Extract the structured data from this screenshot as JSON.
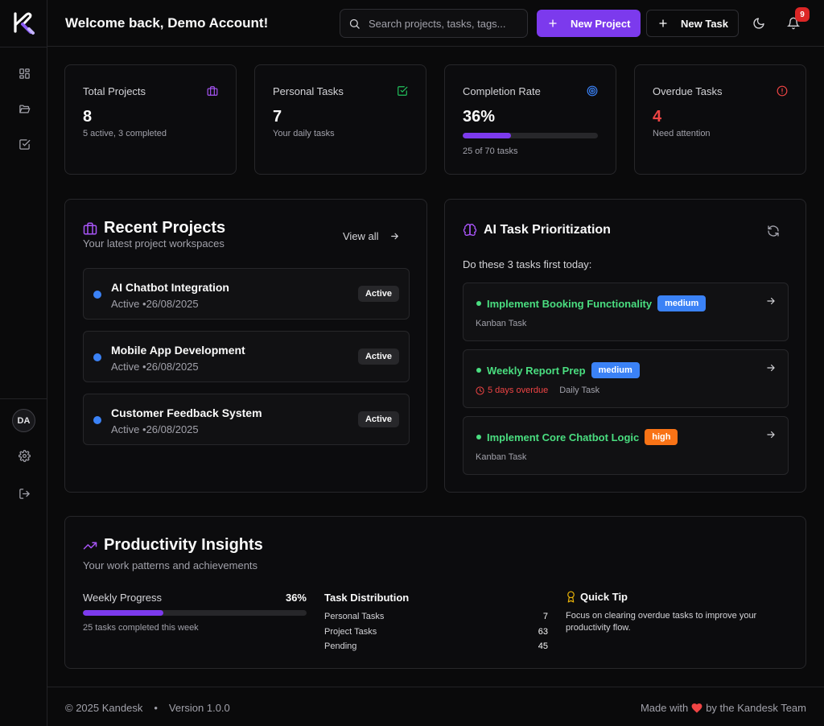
{
  "header": {
    "welcome": "Welcome back, Demo Account!",
    "search_placeholder": "Search projects, tasks, tags...",
    "new_project_label": "New Project",
    "new_task_label": "New Task",
    "notifications_count": "9"
  },
  "sidebar": {
    "avatar_initials": "DA"
  },
  "stats": {
    "total_projects": {
      "title": "Total Projects",
      "value": "8",
      "sub": "5 active, 3 completed"
    },
    "personal_tasks": {
      "title": "Personal Tasks",
      "value": "7",
      "sub": "Your daily tasks"
    },
    "completion_rate": {
      "title": "Completion Rate",
      "value": "36%",
      "progress": 0.36,
      "sub": "25 of 70 tasks"
    },
    "overdue_tasks": {
      "title": "Overdue Tasks",
      "value": "4",
      "sub": "Need attention"
    }
  },
  "recent_projects": {
    "title": "Recent Projects",
    "subtitle": "Your latest project workspaces",
    "view_all": "View all",
    "items": [
      {
        "name": "AI Chatbot Integration",
        "meta": "Active •26/08/2025",
        "badge": "Active"
      },
      {
        "name": "Mobile App Development",
        "meta": "Active •26/08/2025",
        "badge": "Active"
      },
      {
        "name": "Customer Feedback System",
        "meta": "Active •26/08/2025",
        "badge": "Active"
      }
    ]
  },
  "ai_prioritization": {
    "title": "AI Task Prioritization",
    "prompt": "Do these 3 tasks first today:",
    "tasks": [
      {
        "name": "Implement Booking Functionality",
        "priority": "medium",
        "overdue": "",
        "type": "Kanban Task"
      },
      {
        "name": "Weekly Report Prep",
        "priority": "medium",
        "overdue": "5 days overdue",
        "type": "Daily Task"
      },
      {
        "name": "Implement Core Chatbot Logic",
        "priority": "high",
        "overdue": "",
        "type": "Kanban Task"
      }
    ]
  },
  "productivity": {
    "title": "Productivity Insights",
    "subtitle": "Your work patterns and achievements",
    "weekly_progress": {
      "label": "Weekly Progress",
      "value": "36%",
      "progress": 0.36,
      "sub": "25 tasks completed this week"
    },
    "task_distribution": {
      "title": "Task Distribution",
      "rows": [
        {
          "label": "Personal Tasks",
          "value": "7"
        },
        {
          "label": "Project Tasks",
          "value": "63"
        },
        {
          "label": "Pending",
          "value": "45"
        }
      ]
    },
    "quick_tip": {
      "title": "Quick Tip",
      "text": "Focus on clearing overdue tasks to improve your productivity flow."
    }
  },
  "footer": {
    "copyright": "© 2025 Kandesk",
    "separator": "•",
    "version": "Version 1.0.0",
    "made_with": "Made with",
    "by_team": "by the Kandesk Team"
  },
  "colors": {
    "accent": "#7c3aed",
    "overdue": "#ef4444",
    "task_green": "#4ade80",
    "project_dot": "#3b82f6"
  }
}
